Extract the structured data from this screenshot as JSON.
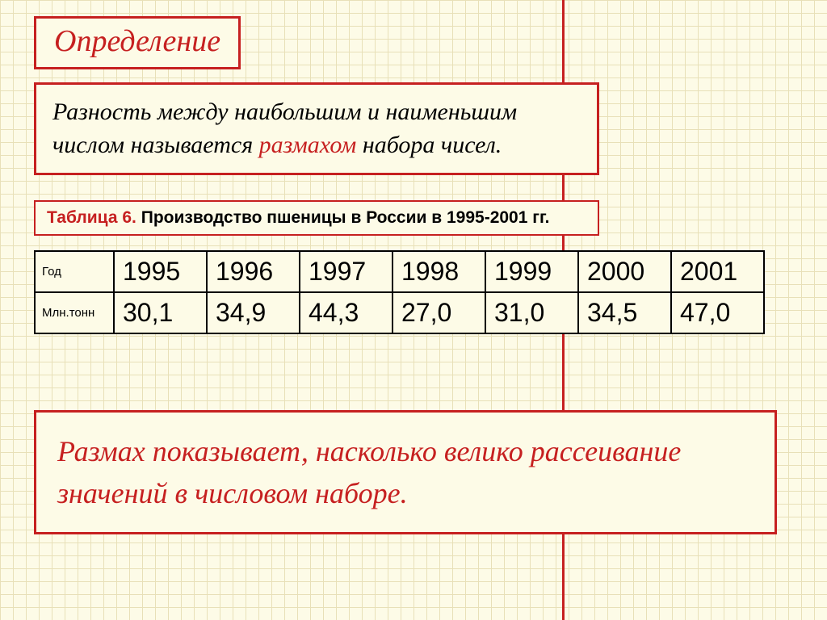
{
  "colors": {
    "accent": "#c62020",
    "bg": "#fdfbe7",
    "grid": "#e8e0b8",
    "text": "#000000"
  },
  "title": "Определение",
  "definition": {
    "part1": "Разность между наибольшим и наименьшим числом называется ",
    "highlight": "размахом",
    "part2": " набора чисел."
  },
  "caption": {
    "prefix": "Таблица 6. ",
    "text": "Производство пшеницы в России в 1995-2001 гг."
  },
  "table": {
    "row1_label": "Год",
    "row2_label": "Млн.тонн",
    "years": [
      "1995",
      "1996",
      "1997",
      "1998",
      "1999",
      "2000",
      "2001"
    ],
    "values": [
      "30,1",
      "34,9",
      "44,3",
      "27,0",
      "31,0",
      "34,5",
      "47,0"
    ],
    "border_color": "#000000",
    "label_fontsize": 15,
    "cell_fontsize": 32
  },
  "footer": "Размах показывает, насколько велико рассеивание значений в числовом наборе."
}
